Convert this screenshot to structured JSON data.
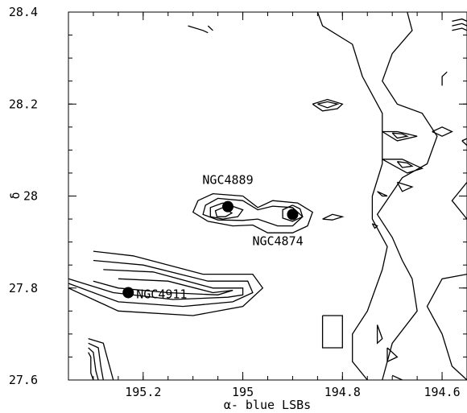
{
  "chart_data": {
    "type": "contour",
    "xlabel": "α- blue LSBs",
    "ylabel": "δ",
    "xlim": [
      195.35,
      194.55
    ],
    "ylim": [
      27.6,
      28.4
    ],
    "x_ticks": [
      195.2,
      195,
      194.8,
      194.6
    ],
    "x_tick_labels": [
      "195.2",
      "195",
      "194.8",
      "194.6"
    ],
    "y_ticks": [
      27.6,
      27.8,
      28,
      28.2,
      28.4
    ],
    "y_tick_labels": [
      "27.6",
      "27.8",
      "28",
      "28.2",
      "28.4"
    ],
    "galaxies": [
      {
        "name": "NGC4889",
        "ra": 195.03,
        "dec": 27.977
      },
      {
        "name": "NGC4874",
        "ra": 194.9,
        "dec": 27.96
      },
      {
        "name": "NGC4911",
        "ra": 195.23,
        "dec": 27.79
      }
    ],
    "contours": [
      [
        [
          195.0,
          28.0
        ],
        [
          195.06,
          28.005
        ],
        [
          195.09,
          27.99
        ],
        [
          195.1,
          27.965
        ],
        [
          195.07,
          27.945
        ],
        [
          195.02,
          27.935
        ],
        [
          194.98,
          27.937
        ],
        [
          194.95,
          27.92
        ],
        [
          194.9,
          27.92
        ],
        [
          194.87,
          27.935
        ],
        [
          194.86,
          27.965
        ],
        [
          194.89,
          27.985
        ],
        [
          194.94,
          27.99
        ],
        [
          194.97,
          27.975
        ],
        [
          195.0,
          28.0
        ]
      ],
      [
        [
          195.0,
          27.99
        ],
        [
          195.05,
          27.995
        ],
        [
          195.075,
          27.98
        ],
        [
          195.08,
          27.96
        ],
        [
          195.05,
          27.948
        ],
        [
          195.0,
          27.947
        ],
        [
          194.97,
          27.95
        ],
        [
          194.93,
          27.935
        ],
        [
          194.9,
          27.935
        ],
        [
          194.88,
          27.955
        ],
        [
          194.9,
          27.975
        ],
        [
          194.94,
          27.978
        ],
        [
          194.97,
          27.97
        ],
        [
          195.0,
          27.99
        ]
      ],
      [
        [
          195.04,
          27.985
        ],
        [
          195.065,
          27.975
        ],
        [
          195.065,
          27.955
        ],
        [
          195.04,
          27.95
        ],
        [
          195.01,
          27.955
        ],
        [
          195.0,
          27.97
        ],
        [
          195.04,
          27.985
        ]
      ],
      [
        [
          195.04,
          27.975
        ],
        [
          195.055,
          27.968
        ],
        [
          195.052,
          27.955
        ],
        [
          195.035,
          27.955
        ],
        [
          195.022,
          27.963
        ],
        [
          195.04,
          27.975
        ]
      ],
      [
        [
          194.9,
          27.98
        ],
        [
          194.885,
          27.972
        ],
        [
          194.88,
          27.955
        ],
        [
          194.9,
          27.945
        ],
        [
          194.92,
          27.952
        ],
        [
          194.92,
          27.97
        ],
        [
          194.9,
          27.98
        ]
      ],
      [
        [
          195.3,
          27.88
        ],
        [
          195.22,
          27.87
        ],
        [
          195.08,
          27.83
        ],
        [
          194.98,
          27.83
        ],
        [
          194.96,
          27.8
        ],
        [
          195.0,
          27.76
        ],
        [
          195.1,
          27.74
        ],
        [
          195.25,
          27.75
        ],
        [
          195.35,
          27.8
        ]
      ],
      [
        [
          195.3,
          27.86
        ],
        [
          195.2,
          27.85
        ],
        [
          195.07,
          27.815
        ],
        [
          194.99,
          27.815
        ],
        [
          194.98,
          27.79
        ],
        [
          195.02,
          27.77
        ],
        [
          195.12,
          27.76
        ],
        [
          195.25,
          27.77
        ],
        [
          195.35,
          27.81
        ]
      ],
      [
        [
          195.28,
          27.84
        ],
        [
          195.18,
          27.835
        ],
        [
          195.06,
          27.8
        ],
        [
          195.0,
          27.8
        ],
        [
          195.0,
          27.785
        ],
        [
          195.03,
          27.78
        ],
        [
          195.14,
          27.775
        ],
        [
          195.26,
          27.79
        ],
        [
          195.35,
          27.82
        ]
      ],
      [
        [
          195.25,
          27.82
        ],
        [
          195.15,
          27.815
        ],
        [
          195.06,
          27.79
        ],
        [
          195.02,
          27.795
        ],
        [
          195.05,
          27.785
        ],
        [
          195.15,
          27.79
        ],
        [
          195.25,
          27.8
        ],
        [
          195.3,
          27.815
        ]
      ],
      [
        [
          195.31,
          27.69
        ],
        [
          195.28,
          27.68
        ],
        [
          195.27,
          27.64
        ],
        [
          195.26,
          27.6
        ]
      ],
      [
        [
          195.31,
          27.68
        ],
        [
          195.29,
          27.67
        ],
        [
          195.285,
          27.63
        ],
        [
          195.28,
          27.6
        ]
      ],
      [
        [
          195.31,
          27.67
        ],
        [
          195.3,
          27.66
        ],
        [
          195.295,
          27.62
        ],
        [
          195.29,
          27.6
        ]
      ],
      [
        [
          195.31,
          27.66
        ],
        [
          195.305,
          27.65
        ],
        [
          195.305,
          27.615
        ],
        [
          195.3,
          27.6
        ]
      ],
      [
        [
          194.86,
          28.2
        ],
        [
          194.83,
          28.21
        ],
        [
          194.8,
          28.2
        ],
        [
          194.81,
          28.19
        ],
        [
          194.84,
          28.185
        ],
        [
          194.86,
          28.2
        ]
      ],
      [
        [
          194.85,
          28.2
        ],
        [
          194.83,
          28.205
        ],
        [
          194.81,
          28.2
        ],
        [
          194.83,
          28.192
        ],
        [
          194.85,
          28.2
        ]
      ],
      [
        [
          194.84,
          27.95
        ],
        [
          194.82,
          27.96
        ],
        [
          194.8,
          27.955
        ],
        [
          194.82,
          27.948
        ],
        [
          194.84,
          27.95
        ]
      ],
      [
        [
          194.84,
          27.74
        ],
        [
          194.8,
          27.74
        ],
        [
          194.8,
          27.67
        ],
        [
          194.84,
          27.67
        ],
        [
          194.84,
          27.74
        ]
      ],
      [
        [
          195.11,
          28.37
        ],
        [
          195.08,
          28.36
        ],
        [
          195.07,
          28.355
        ]
      ],
      [
        [
          195.07,
          28.37
        ],
        [
          195.06,
          28.36
        ]
      ],
      [
        [
          194.85,
          28.4
        ],
        [
          194.84,
          28.37
        ],
        [
          194.78,
          28.33
        ],
        [
          194.76,
          28.26
        ],
        [
          194.72,
          28.18
        ],
        [
          194.72,
          28.07
        ],
        [
          194.74,
          28.0
        ],
        [
          194.74,
          27.95
        ],
        [
          194.71,
          27.89
        ],
        [
          194.72,
          27.84
        ],
        [
          194.75,
          27.75
        ],
        [
          194.78,
          27.7
        ],
        [
          194.78,
          27.64
        ],
        [
          194.75,
          27.6
        ]
      ],
      [
        [
          194.67,
          28.4
        ],
        [
          194.66,
          28.36
        ],
        [
          194.7,
          28.31
        ],
        [
          194.72,
          28.25
        ],
        [
          194.69,
          28.2
        ],
        [
          194.64,
          28.18
        ],
        [
          194.61,
          28.13
        ],
        [
          194.63,
          28.07
        ],
        [
          194.68,
          28.04
        ],
        [
          194.73,
          27.96
        ],
        [
          194.7,
          27.91
        ],
        [
          194.68,
          27.86
        ],
        [
          194.66,
          27.82
        ],
        [
          194.65,
          27.75
        ],
        [
          194.7,
          27.68
        ],
        [
          194.72,
          27.6
        ]
      ],
      [
        [
          194.55,
          28.03
        ],
        [
          194.58,
          27.99
        ],
        [
          194.55,
          27.95
        ]
      ],
      [
        [
          194.55,
          27.83
        ],
        [
          194.6,
          27.82
        ],
        [
          194.63,
          27.76
        ],
        [
          194.6,
          27.7
        ],
        [
          194.58,
          27.63
        ],
        [
          194.55,
          27.6
        ]
      ],
      [
        [
          194.62,
          28.14
        ],
        [
          194.6,
          28.15
        ],
        [
          194.58,
          28.14
        ],
        [
          194.6,
          28.13
        ],
        [
          194.62,
          28.14
        ]
      ],
      [
        [
          194.56,
          28.12
        ],
        [
          194.55,
          28.125
        ],
        [
          194.54,
          28.12
        ],
        [
          194.55,
          28.11
        ],
        [
          194.56,
          28.12
        ]
      ],
      [
        [
          194.58,
          28.38
        ],
        [
          194.56,
          28.385
        ],
        [
          194.55,
          28.38
        ]
      ],
      [
        [
          194.58,
          28.37
        ],
        [
          194.56,
          28.375
        ],
        [
          194.55,
          28.37
        ]
      ],
      [
        [
          194.58,
          28.36
        ],
        [
          194.56,
          28.365
        ],
        [
          194.55,
          28.36
        ]
      ],
      [
        [
          194.59,
          28.27
        ],
        [
          194.6,
          28.26
        ],
        [
          194.6,
          28.24
        ]
      ],
      [
        [
          194.72,
          28.14
        ],
        [
          194.69,
          28.14
        ],
        [
          194.65,
          28.13
        ],
        [
          194.69,
          28.12
        ],
        [
          194.72,
          28.14
        ]
      ],
      [
        [
          194.7,
          28.137
        ],
        [
          194.68,
          28.135
        ],
        [
          194.67,
          28.13
        ],
        [
          194.69,
          28.126
        ],
        [
          194.7,
          28.137
        ]
      ],
      [
        [
          194.72,
          28.08
        ],
        [
          194.68,
          28.08
        ],
        [
          194.64,
          28.06
        ],
        [
          194.67,
          28.05
        ],
        [
          194.72,
          28.08
        ]
      ],
      [
        [
          194.69,
          28.075
        ],
        [
          194.67,
          28.072
        ],
        [
          194.66,
          28.065
        ],
        [
          194.68,
          28.062
        ],
        [
          194.69,
          28.075
        ]
      ],
      [
        [
          194.69,
          28.03
        ],
        [
          194.66,
          28.02
        ],
        [
          194.68,
          28.01
        ],
        [
          194.69,
          28.03
        ]
      ],
      [
        [
          194.73,
          28.01
        ],
        [
          194.71,
          28.0
        ],
        [
          194.72,
          28.0
        ],
        [
          194.73,
          28.01
        ]
      ],
      [
        [
          194.74,
          27.94
        ],
        [
          194.73,
          27.935
        ],
        [
          194.735,
          27.93
        ],
        [
          194.74,
          27.94
        ]
      ],
      [
        [
          194.73,
          27.72
        ],
        [
          194.72,
          27.69
        ],
        [
          194.73,
          27.68
        ],
        [
          194.73,
          27.72
        ]
      ],
      [
        [
          194.71,
          27.67
        ],
        [
          194.69,
          27.65
        ],
        [
          194.71,
          27.64
        ],
        [
          194.71,
          27.67
        ]
      ],
      [
        [
          194.7,
          27.61
        ],
        [
          194.68,
          27.6
        ]
      ]
    ]
  }
}
